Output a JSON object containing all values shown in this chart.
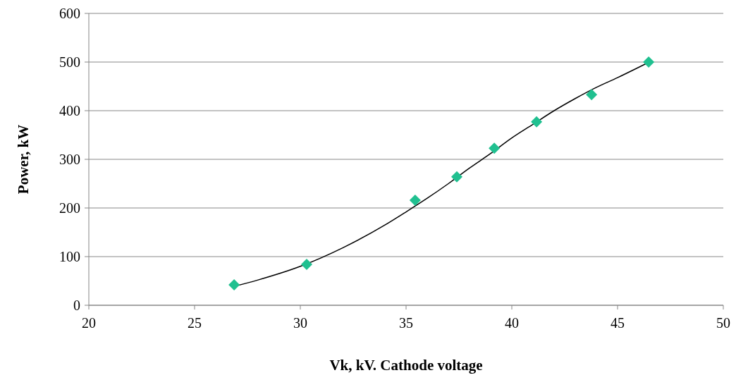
{
  "chart_data": {
    "type": "scatter",
    "xlabel": "Vk, kV. Cathode voltage",
    "ylabel": "Power, kW",
    "xlim": [
      20,
      50
    ],
    "xticks": [
      20,
      25,
      30,
      35,
      40,
      45,
      50
    ],
    "ylim": [
      0,
      600
    ],
    "yticks": [
      0,
      100,
      200,
      300,
      400,
      500,
      600
    ],
    "grid": "y",
    "marker": "diamond",
    "series": [
      {
        "color": "#20c090",
        "x": [
          26.87,
          30.3,
          35.43,
          37.4,
          39.17,
          41.17,
          43.77,
          46.47
        ],
        "values": [
          42,
          84,
          216,
          264,
          323,
          377,
          433,
          500
        ]
      },
      {
        "type": "line",
        "color": "#000000",
        "marker": "none",
        "x": [
          26.8,
          28,
          30,
          32,
          34,
          35,
          36,
          37,
          38,
          39,
          40,
          41,
          42,
          43,
          44,
          45,
          46.5
        ],
        "values": [
          38,
          52,
          80,
          118,
          165,
          192,
          220,
          250,
          282,
          312,
          344,
          372,
          400,
          425,
          448,
          468,
          500
        ]
      }
    ]
  }
}
